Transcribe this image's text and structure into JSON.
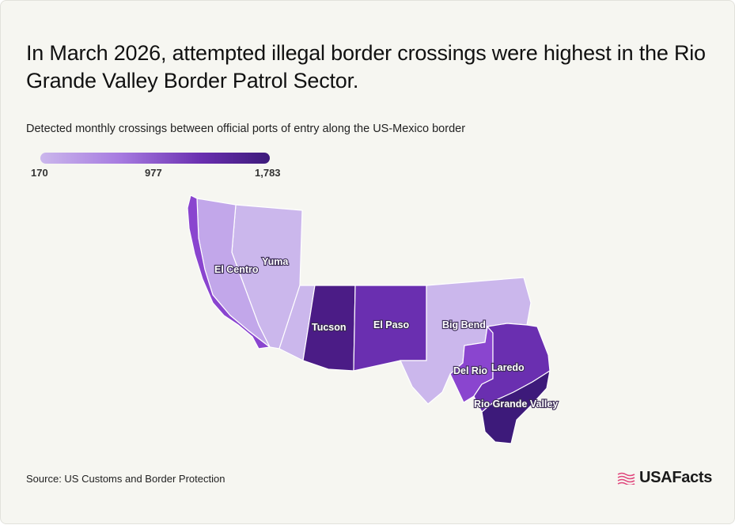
{
  "title": "In March 2026, attempted illegal border crossings were highest in the Rio Grande Valley Border Patrol Sector.",
  "subtitle": "Detected monthly crossings between official ports of entry along the US-Mexico border",
  "legend": {
    "min": "170",
    "mid": "977",
    "max": "1,783",
    "colors": [
      "#cbb7ec",
      "#a67ae0",
      "#6a2fb0",
      "#3d1a7a"
    ]
  },
  "map": {
    "sectors": [
      {
        "name": "El Centro",
        "color": "#c2a7ea"
      },
      {
        "name": "Yuma",
        "color": "#cbb7ec"
      },
      {
        "name": "Tucson",
        "color": "#4b1c86"
      },
      {
        "name": "El Paso",
        "color": "#6a2fb0"
      },
      {
        "name": "Big Bend",
        "color": "#cbb7ec"
      },
      {
        "name": "Del Rio",
        "color": "#8a45cf"
      },
      {
        "name": "Laredo",
        "color": "#6a2fb0"
      },
      {
        "name": "Rio Grande Valley",
        "color": "#3d1a7a"
      }
    ],
    "coast_sector_color": "#8a45cf"
  },
  "source": "Source: US Customs and Border Protection",
  "brand": {
    "name": "USAFacts",
    "accent": "#e0457b"
  }
}
